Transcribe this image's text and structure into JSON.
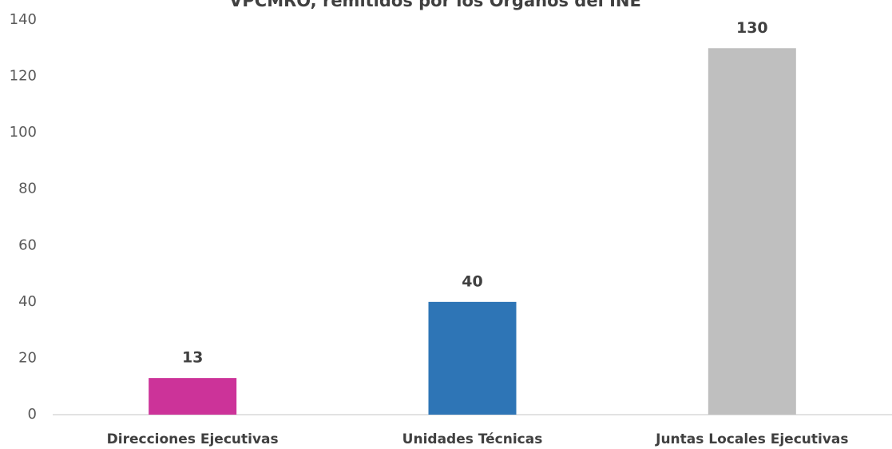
{
  "chart_data": {
    "type": "bar",
    "title": "VPCMRO, remitidos por los Órganos del INE",
    "categories": [
      "Direcciones Ejecutivas",
      "Unidades Técnicas",
      "Juntas Locales Ejecutivas"
    ],
    "values": [
      13,
      40,
      130
    ],
    "colors": [
      "#cc3399",
      "#2e75b6",
      "#bfbfbf"
    ],
    "ylim": [
      0,
      140
    ],
    "yticks": [
      0,
      20,
      40,
      60,
      80,
      100,
      120,
      140
    ],
    "grid": false
  }
}
